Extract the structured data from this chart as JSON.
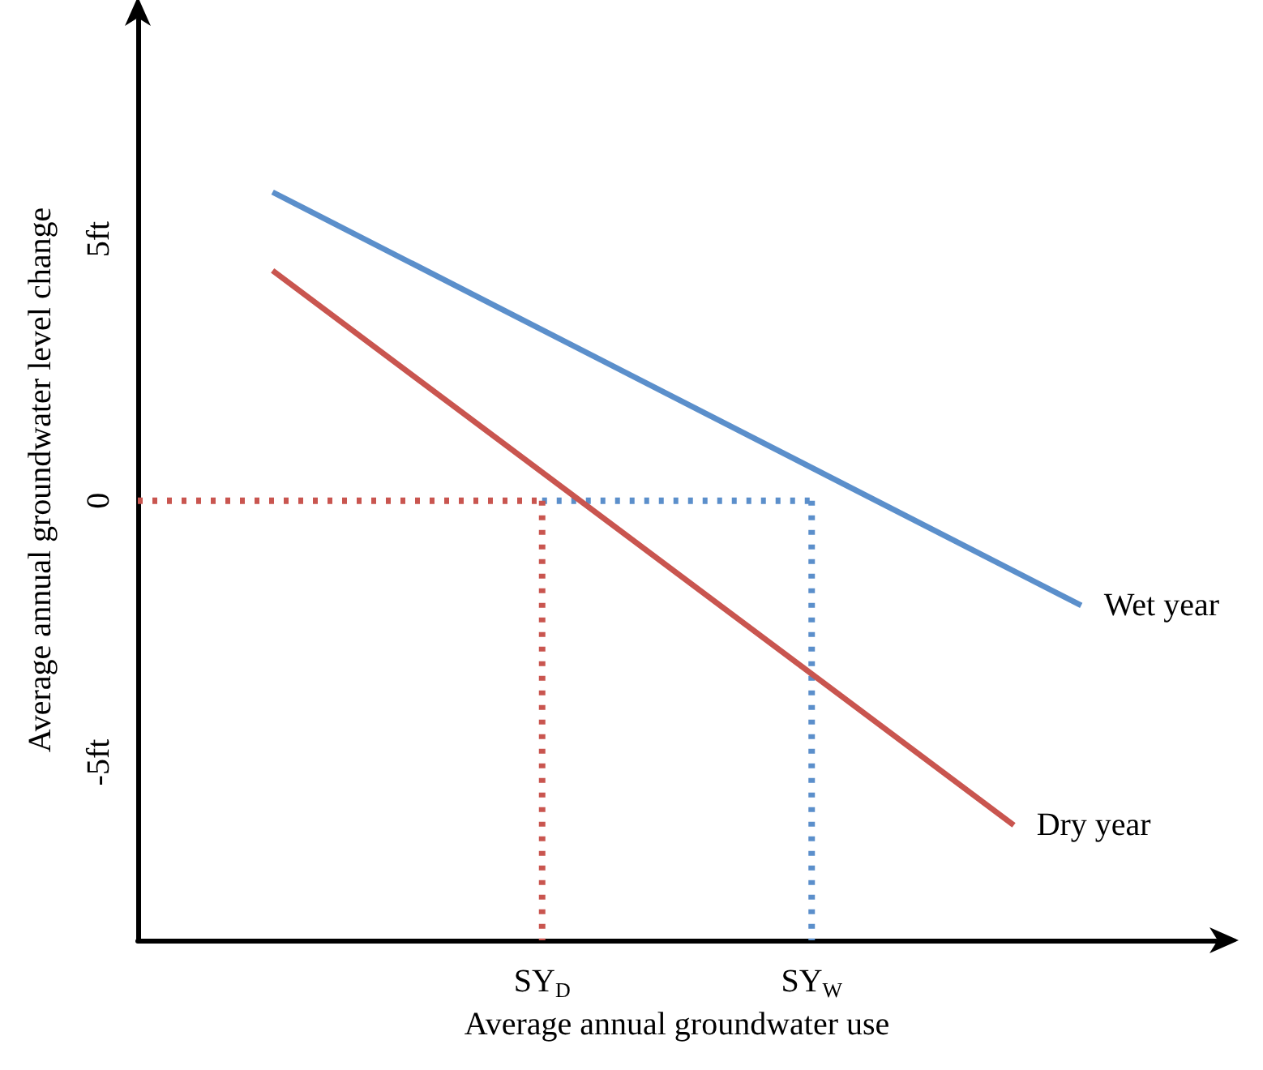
{
  "chart_data": {
    "type": "line",
    "xlabel": "Average annual groundwater use",
    "ylabel": "Average annual groundwater level change",
    "categories": [
      null,
      null,
      null,
      null,
      null,
      null,
      "SY$_{D}$",
      null,
      null,
      null,
      "SY$_{W}$",
      null,
      null,
      null,
      null,
      null,
      null
    ],
    "ylim": [
      -8.4,
      9.2
    ],
    "yticks": [
      {
        "value": 5,
        "label": "5ft"
      },
      0,
      {
        "value": -5,
        "label": "-5ft"
      }
    ],
    "grid": false,
    "legend": false,
    "marker": "none",
    "series": [
      {
        "name": "Wet year",
        "color": "#5b8fcb",
        "values": [
          null,
          null,
          5.9,
          null,
          null,
          null,
          null,
          null,
          null,
          null,
          null,
          null,
          null,
          null,
          -2.0,
          null,
          null
        ],
        "line_style": "solid"
      },
      {
        "name": "Dry year",
        "color": "#c9554f",
        "values": [
          null,
          null,
          4.4,
          null,
          null,
          null,
          null,
          null,
          null,
          null,
          null,
          null,
          null,
          -6.2,
          null,
          null,
          null
        ],
        "line_style": "solid"
      },
      {
        "color": "#c9554f",
        "values": [
          0,
          0,
          0,
          0,
          0,
          0,
          0,
          null,
          null,
          null,
          null,
          null,
          null,
          null,
          null,
          null,
          null
        ],
        "line_style": "dotted"
      },
      {
        "color": "#5b8fcb",
        "values": [
          null,
          null,
          null,
          null,
          null,
          null,
          0,
          0,
          0,
          0,
          0,
          null,
          null,
          null,
          null,
          null,
          null
        ],
        "line_style": "dotted"
      },
      {
        "color": "#c9554f",
        "x": [
          "SY$_{D}$",
          "SY$_{D}$"
        ],
        "values": [
          0,
          -8.4
        ],
        "line_style": "dotted"
      },
      {
        "color": "#5b8fcb",
        "x": [
          "SY$_{W}$",
          "SY$_{W}$"
        ],
        "values": [
          0,
          -8.4
        ],
        "line_style": "dotted"
      }
    ]
  }
}
